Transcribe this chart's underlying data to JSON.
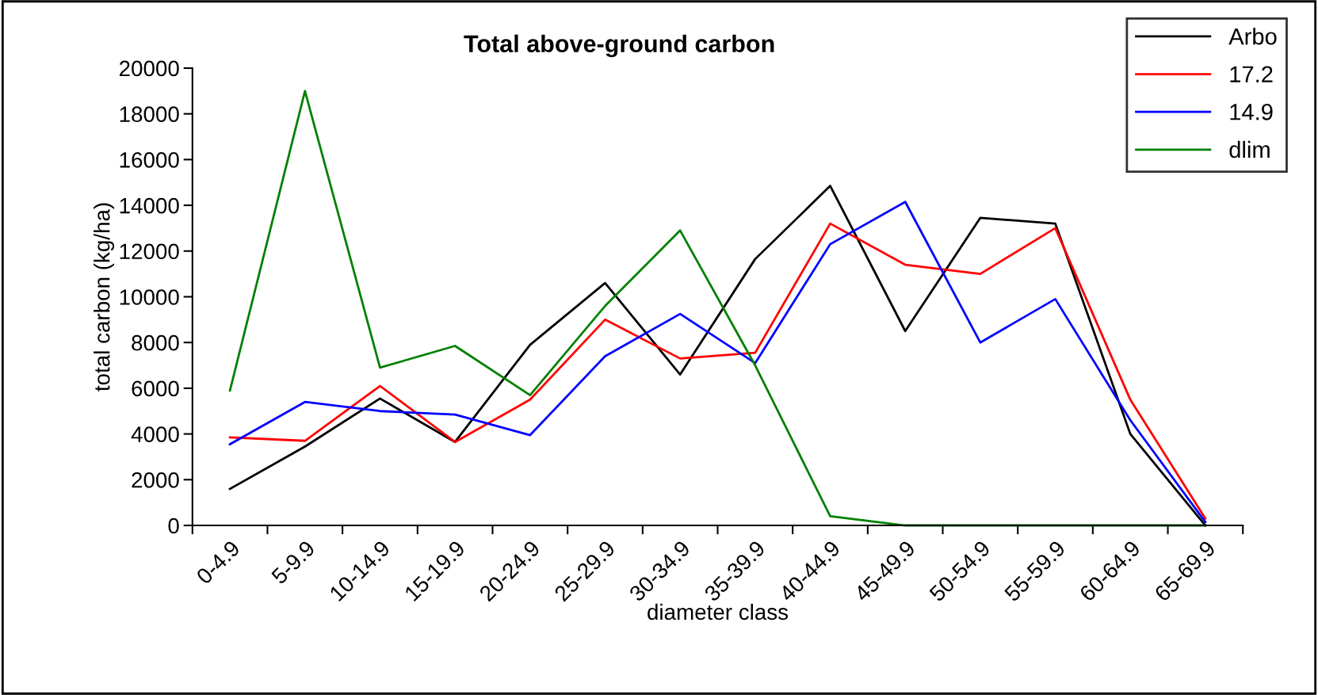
{
  "chart_data": {
    "type": "line",
    "title": "Total above-ground carbon",
    "xlabel": "diameter class",
    "ylabel": "total carbon (kg/ha)",
    "categories": [
      "0-4.9",
      "5-9.9",
      "10-14.9",
      "15-19.9",
      "20-24.9",
      "25-29.9",
      "30-34.9",
      "35-39.9",
      "40-44.9",
      "45-49.9",
      "50-54.9",
      "55-59.9",
      "60-64.9",
      "65-69.9"
    ],
    "series": [
      {
        "name": "Arbo",
        "color": "#000000",
        "values": [
          1600,
          3450,
          5550,
          3650,
          7900,
          10600,
          6600,
          11650,
          14850,
          8500,
          13450,
          13200,
          4000,
          0
        ]
      },
      {
        "name": "17.2",
        "color": "#ff0000",
        "values": [
          3850,
          3700,
          6100,
          3650,
          5500,
          9000,
          7300,
          7550,
          13200,
          11400,
          11000,
          13000,
          5500,
          300
        ]
      },
      {
        "name": "14.9",
        "color": "#0000ff",
        "values": [
          3550,
          5400,
          5000,
          4850,
          3950,
          7400,
          9250,
          7100,
          12300,
          14150,
          8000,
          9900,
          4600,
          150
        ]
      },
      {
        "name": "dlim",
        "color": "#008000",
        "values": [
          5900,
          19000,
          6900,
          7850,
          5700,
          9600,
          12900,
          7000,
          400,
          0,
          0,
          0,
          0,
          0
        ]
      }
    ],
    "ylim": [
      0,
      20000
    ],
    "yticks": [
      0,
      2000,
      4000,
      6000,
      8000,
      10000,
      12000,
      14000,
      16000,
      18000,
      20000
    ],
    "grid": false,
    "legend": "top right",
    "marker": "none",
    "line_style": "solid"
  }
}
